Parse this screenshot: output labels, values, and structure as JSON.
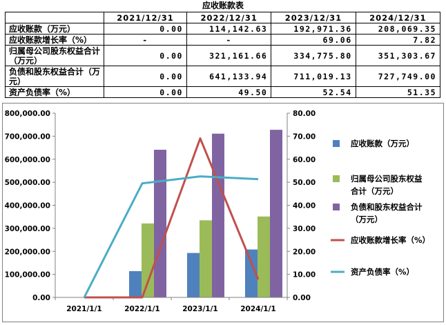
{
  "table": {
    "title": "应收账款表",
    "headers": [
      "",
      "2021/12/31",
      "2022/12/31",
      "2023/12/31",
      "2024/12/31"
    ],
    "rows": [
      {
        "label": "应收账款（万元）",
        "values": [
          "0.00",
          "114,142.63",
          "192,971.36",
          "208,069.35"
        ]
      },
      {
        "label": "应收账款增长率（%）",
        "values": [
          "-",
          "-",
          "69.06",
          "7.82"
        ]
      },
      {
        "label": "归属母公司股东权益合计（万元）",
        "values": [
          "0.00",
          "321,161.66",
          "334,775.80",
          "351,303.67"
        ]
      },
      {
        "label": "负债和股东权益合计（万元）",
        "values": [
          "0.00",
          "641,133.94",
          "711,019.13",
          "727,749.00"
        ]
      },
      {
        "label": "资产负债率（%）",
        "values": [
          "0.00",
          "49.50",
          "52.54",
          "51.35"
        ]
      }
    ]
  },
  "chart_data": {
    "type": "bar",
    "categories": [
      "2021/1/1",
      "2022/1/1",
      "2023/1/1",
      "2024/1/1"
    ],
    "left_axis": {
      "ylim": [
        0,
        800000
      ],
      "ticks": [
        "0.00",
        "100,000.00",
        "200,000.00",
        "300,000.00",
        "400,000.00",
        "500,000.00",
        "600,000.00",
        "700,000.00",
        "800,000.00"
      ]
    },
    "right_axis": {
      "ylim": [
        0,
        80
      ],
      "ticks": [
        "0.00",
        "10.00",
        "20.00",
        "30.00",
        "40.00",
        "50.00",
        "60.00",
        "70.00",
        "80.00"
      ]
    },
    "series": [
      {
        "name": "应收账款（万元）",
        "kind": "bar",
        "axis": "left",
        "color": "#4f81bd",
        "values": [
          0,
          114142.63,
          192971.36,
          208069.35
        ]
      },
      {
        "name": "归属母公司股东权益合计（万元）",
        "kind": "bar",
        "axis": "left",
        "color": "#9bbb59",
        "values": [
          0,
          321161.66,
          334775.8,
          351303.67
        ]
      },
      {
        "name": "负债和股东权益合计（万元）",
        "kind": "bar",
        "axis": "left",
        "color": "#8064a2",
        "values": [
          0,
          641133.94,
          711019.13,
          727749.0
        ]
      },
      {
        "name": "应收账款增长率（%）",
        "kind": "line",
        "axis": "right",
        "color": "#c0504d",
        "values": [
          0,
          0,
          69.06,
          7.82
        ]
      },
      {
        "name": "资产负债率（%）",
        "kind": "line",
        "axis": "right",
        "color": "#4bacc6",
        "values": [
          0,
          49.5,
          52.54,
          51.35
        ]
      }
    ],
    "legend": [
      {
        "lines": [
          "应收账款（万元）"
        ],
        "color": "#4f81bd",
        "kind": "bar"
      },
      {
        "lines": [
          "归属母公司股东权益",
          "合计（万元）"
        ],
        "color": "#9bbb59",
        "kind": "bar"
      },
      {
        "lines": [
          "负债和股东权益合计",
          "（万元）"
        ],
        "color": "#8064a2",
        "kind": "bar"
      },
      {
        "lines": [
          "应收账款增长率（%）"
        ],
        "color": "#c0504d",
        "kind": "line"
      },
      {
        "lines": [
          "资产负债率（%）"
        ],
        "color": "#4bacc6",
        "kind": "line"
      }
    ],
    "legend_position": "right",
    "grid": false
  }
}
